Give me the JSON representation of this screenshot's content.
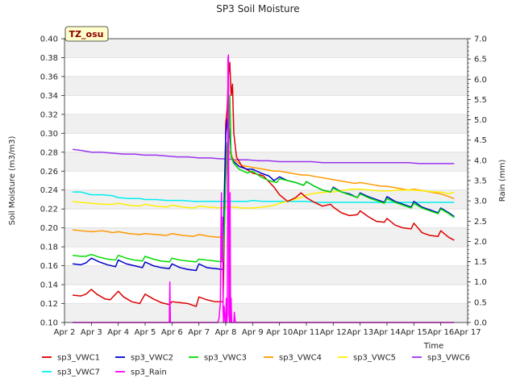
{
  "chart_data": {
    "type": "line",
    "title": "SP3 Soil Moisture",
    "xlabel": "Time",
    "ylabel": "Soil Moisture (m3/m3)",
    "y2label": "Rain (mm)",
    "badge": "TZ_osu",
    "x_ticks": [
      "Apr 2",
      "Apr 3",
      "Apr 4",
      "Apr 5",
      "Apr 6",
      "Apr 7",
      "Apr 8",
      "Apr 9",
      "Apr 10",
      "Apr 11",
      "Apr 12",
      "Apr 13",
      "Apr 14",
      "Apr 15",
      "Apr 16",
      "Apr 17"
    ],
    "xlim": [
      0,
      15
    ],
    "ylim": [
      0.1,
      0.4
    ],
    "y_ticks": [
      "0.10",
      "0.12",
      "0.14",
      "0.16",
      "0.18",
      "0.20",
      "0.22",
      "0.24",
      "0.26",
      "0.28",
      "0.30",
      "0.32",
      "0.34",
      "0.36",
      "0.38",
      "0.40"
    ],
    "y2lim": [
      0.0,
      7.0
    ],
    "y2_ticks": [
      "0.0",
      "0.5",
      "1.0",
      "1.5",
      "2.0",
      "2.5",
      "3.0",
      "3.5",
      "4.0",
      "4.5",
      "5.0",
      "5.5",
      "6.0",
      "6.5",
      "7.0"
    ],
    "grid": "horizontal bands",
    "legend_position": "bottom",
    "series": [
      {
        "name": "sp3_VWC1",
        "color": "#dd0000",
        "axis": "left",
        "x": [
          0.3,
          0.6,
          0.8,
          1.0,
          1.2,
          1.5,
          1.7,
          2.0,
          2.2,
          2.5,
          2.8,
          3.0,
          3.3,
          3.6,
          3.9,
          4.0,
          4.3,
          4.6,
          4.9,
          5.0,
          5.3,
          5.6,
          5.9,
          5.95,
          5.98,
          6.0,
          6.05,
          6.1,
          6.15,
          6.2,
          6.25,
          6.3,
          6.4,
          6.6,
          7.0,
          7.4,
          7.8,
          8.0,
          8.3,
          8.6,
          8.8,
          9.0,
          9.3,
          9.6,
          9.9,
          10.0,
          10.3,
          10.6,
          10.9,
          11.0,
          11.3,
          11.6,
          11.9,
          12.0,
          12.3,
          12.6,
          12.9,
          13.0,
          13.3,
          13.6,
          13.9,
          14.0,
          14.3,
          14.5
        ],
        "y": [
          0.129,
          0.128,
          0.13,
          0.135,
          0.13,
          0.125,
          0.124,
          0.133,
          0.127,
          0.122,
          0.12,
          0.13,
          0.125,
          0.121,
          0.119,
          0.122,
          0.121,
          0.12,
          0.117,
          0.127,
          0.124,
          0.122,
          0.122,
          0.2,
          0.25,
          0.31,
          0.325,
          0.36,
          0.375,
          0.34,
          0.352,
          0.3,
          0.275,
          0.265,
          0.258,
          0.255,
          0.243,
          0.235,
          0.228,
          0.232,
          0.237,
          0.232,
          0.227,
          0.223,
          0.225,
          0.222,
          0.216,
          0.213,
          0.214,
          0.218,
          0.212,
          0.207,
          0.206,
          0.21,
          0.203,
          0.2,
          0.199,
          0.205,
          0.195,
          0.192,
          0.191,
          0.197,
          0.19,
          0.187
        ]
      },
      {
        "name": "sp3_VWC2",
        "color": "#0000cc",
        "axis": "left",
        "x": [
          0.3,
          0.6,
          0.8,
          1.0,
          1.3,
          1.6,
          1.9,
          2.0,
          2.3,
          2.6,
          2.9,
          3.0,
          3.3,
          3.6,
          3.9,
          4.0,
          4.3,
          4.6,
          4.9,
          5.0,
          5.3,
          5.6,
          5.9,
          5.95,
          6.0,
          6.05,
          6.1,
          6.15,
          6.2,
          6.3,
          6.5,
          6.8,
          7.0,
          7.3,
          7.6,
          7.8,
          8.0,
          8.3,
          8.6,
          8.9,
          9.0,
          9.3,
          9.6,
          9.9,
          10.0,
          10.3,
          10.6,
          10.9,
          11.0,
          11.3,
          11.6,
          11.9,
          12.0,
          12.3,
          12.6,
          12.9,
          13.0,
          13.3,
          13.6,
          13.9,
          14.0,
          14.3,
          14.5
        ],
        "y": [
          0.162,
          0.161,
          0.163,
          0.168,
          0.164,
          0.161,
          0.159,
          0.166,
          0.162,
          0.16,
          0.158,
          0.164,
          0.16,
          0.158,
          0.157,
          0.162,
          0.158,
          0.156,
          0.155,
          0.162,
          0.158,
          0.157,
          0.156,
          0.24,
          0.3,
          0.315,
          0.29,
          0.305,
          0.275,
          0.27,
          0.265,
          0.262,
          0.262,
          0.258,
          0.255,
          0.25,
          0.254,
          0.25,
          0.248,
          0.245,
          0.249,
          0.244,
          0.24,
          0.238,
          0.243,
          0.238,
          0.236,
          0.232,
          0.237,
          0.233,
          0.23,
          0.227,
          0.233,
          0.228,
          0.225,
          0.222,
          0.228,
          0.222,
          0.219,
          0.216,
          0.221,
          0.216,
          0.212
        ]
      },
      {
        "name": "sp3_VWC3",
        "color": "#00dd00",
        "axis": "left",
        "x": [
          0.3,
          0.6,
          0.8,
          1.0,
          1.3,
          1.6,
          1.9,
          2.0,
          2.3,
          2.6,
          2.9,
          3.0,
          3.3,
          3.6,
          3.9,
          4.0,
          4.3,
          4.6,
          4.9,
          5.0,
          5.3,
          5.6,
          5.9,
          5.95,
          6.0,
          6.05,
          6.1,
          6.15,
          6.2,
          6.3,
          6.5,
          6.8,
          7.0,
          7.3,
          7.6,
          7.9,
          8.0,
          8.3,
          8.6,
          8.9,
          9.0,
          9.3,
          9.6,
          9.9,
          10.0,
          10.3,
          10.6,
          10.9,
          11.0,
          11.3,
          11.6,
          11.9,
          12.0,
          12.3,
          12.6,
          12.9,
          13.0,
          13.3,
          13.6,
          13.9,
          14.0,
          14.3,
          14.5
        ],
        "y": [
          0.171,
          0.17,
          0.17,
          0.172,
          0.169,
          0.167,
          0.166,
          0.171,
          0.168,
          0.166,
          0.165,
          0.17,
          0.167,
          0.165,
          0.164,
          0.168,
          0.166,
          0.165,
          0.164,
          0.167,
          0.166,
          0.165,
          0.164,
          0.2,
          0.25,
          0.29,
          0.27,
          0.34,
          0.275,
          0.268,
          0.262,
          0.258,
          0.26,
          0.254,
          0.25,
          0.248,
          0.252,
          0.25,
          0.248,
          0.245,
          0.249,
          0.244,
          0.24,
          0.238,
          0.242,
          0.238,
          0.235,
          0.232,
          0.236,
          0.232,
          0.229,
          0.226,
          0.231,
          0.227,
          0.224,
          0.221,
          0.226,
          0.221,
          0.218,
          0.215,
          0.22,
          0.215,
          0.211
        ]
      },
      {
        "name": "sp3_VWC4",
        "color": "#ff9900",
        "axis": "left",
        "x": [
          0.3,
          0.6,
          1.0,
          1.4,
          1.8,
          2.0,
          2.4,
          2.8,
          3.0,
          3.4,
          3.8,
          4.0,
          4.4,
          4.8,
          5.0,
          5.4,
          5.8,
          5.95,
          6.0,
          6.05,
          6.1,
          6.2,
          6.3,
          6.6,
          7.0,
          7.4,
          7.8,
          8.0,
          8.4,
          8.8,
          9.0,
          9.4,
          9.8,
          10.0,
          10.4,
          10.8,
          11.0,
          11.4,
          11.8,
          12.0,
          12.4,
          12.8,
          13.0,
          13.4,
          13.8,
          14.0,
          14.3,
          14.5
        ],
        "y": [
          0.198,
          0.197,
          0.196,
          0.197,
          0.195,
          0.196,
          0.194,
          0.193,
          0.194,
          0.193,
          0.192,
          0.194,
          0.192,
          0.191,
          0.193,
          0.191,
          0.19,
          0.21,
          0.25,
          0.275,
          0.282,
          0.278,
          0.272,
          0.266,
          0.264,
          0.262,
          0.26,
          0.26,
          0.258,
          0.256,
          0.256,
          0.254,
          0.252,
          0.251,
          0.249,
          0.247,
          0.248,
          0.246,
          0.244,
          0.244,
          0.242,
          0.24,
          0.241,
          0.239,
          0.237,
          0.236,
          0.233,
          0.231
        ]
      },
      {
        "name": "sp3_VWC5",
        "color": "#ffee00",
        "axis": "left",
        "x": [
          0.3,
          0.6,
          1.0,
          1.4,
          1.8,
          2.0,
          2.4,
          2.8,
          3.0,
          3.4,
          3.8,
          4.0,
          4.4,
          4.8,
          5.0,
          5.4,
          5.8,
          6.0,
          6.3,
          6.6,
          7.0,
          7.4,
          7.8,
          8.0,
          8.4,
          8.8,
          9.0,
          9.4,
          9.8,
          10.0,
          10.4,
          10.8,
          11.0,
          11.4,
          11.8,
          12.0,
          12.4,
          12.8,
          13.0,
          13.4,
          13.8,
          14.0,
          14.3,
          14.5
        ],
        "y": [
          0.228,
          0.227,
          0.226,
          0.225,
          0.225,
          0.226,
          0.224,
          0.223,
          0.225,
          0.223,
          0.222,
          0.224,
          0.222,
          0.221,
          0.223,
          0.222,
          0.221,
          0.222,
          0.222,
          0.221,
          0.221,
          0.222,
          0.224,
          0.226,
          0.229,
          0.232,
          0.235,
          0.237,
          0.238,
          0.238,
          0.24,
          0.241,
          0.241,
          0.24,
          0.239,
          0.239,
          0.24,
          0.24,
          0.24,
          0.239,
          0.238,
          0.238,
          0.236,
          0.238
        ]
      },
      {
        "name": "sp3_VWC6",
        "color": "#9933ee",
        "axis": "left",
        "x": [
          0.3,
          0.6,
          1.0,
          1.4,
          1.8,
          2.2,
          2.6,
          3.0,
          3.4,
          3.8,
          4.2,
          4.6,
          5.0,
          5.4,
          5.8,
          6.0,
          6.4,
          6.8,
          7.2,
          7.6,
          8.0,
          8.4,
          8.8,
          9.2,
          9.6,
          10.0,
          10.4,
          10.8,
          11.2,
          11.6,
          12.0,
          12.4,
          12.8,
          13.2,
          13.6,
          14.0,
          14.3,
          14.5
        ],
        "y": [
          0.283,
          0.282,
          0.28,
          0.28,
          0.279,
          0.278,
          0.278,
          0.277,
          0.277,
          0.276,
          0.275,
          0.275,
          0.274,
          0.274,
          0.273,
          0.273,
          0.272,
          0.272,
          0.271,
          0.271,
          0.27,
          0.27,
          0.27,
          0.27,
          0.269,
          0.269,
          0.269,
          0.269,
          0.269,
          0.269,
          0.269,
          0.269,
          0.269,
          0.268,
          0.268,
          0.268,
          0.268,
          0.268
        ]
      },
      {
        "name": "sp3_VWC7",
        "color": "#00eeee",
        "axis": "left",
        "x": [
          0.3,
          0.6,
          1.0,
          1.4,
          1.8,
          2.0,
          2.4,
          2.8,
          3.0,
          3.4,
          3.8,
          4.0,
          4.4,
          4.8,
          5.0,
          5.4,
          5.8,
          6.0,
          6.4,
          6.8,
          7.0,
          7.4,
          7.8,
          8.0,
          8.4,
          8.8,
          9.0,
          9.4,
          9.8,
          10.0,
          10.4,
          10.8,
          11.0,
          11.4,
          11.8,
          12.0,
          12.4,
          12.8,
          13.0,
          13.4,
          13.8,
          14.0,
          14.3,
          14.5
        ],
        "y": [
          0.238,
          0.238,
          0.235,
          0.235,
          0.234,
          0.232,
          0.231,
          0.231,
          0.23,
          0.23,
          0.229,
          0.229,
          0.229,
          0.228,
          0.228,
          0.228,
          0.228,
          0.228,
          0.228,
          0.228,
          0.229,
          0.228,
          0.228,
          0.228,
          0.228,
          0.228,
          0.228,
          0.227,
          0.227,
          0.227,
          0.227,
          0.227,
          0.227,
          0.227,
          0.227,
          0.227,
          0.227,
          0.227,
          0.227,
          0.227,
          0.227,
          0.227,
          0.227,
          0.227
        ]
      },
      {
        "name": "sp3_Rain",
        "color": "#ff00ff",
        "axis": "right",
        "x": [
          0.3,
          3.9,
          3.92,
          3.94,
          3.96,
          5.7,
          5.75,
          5.8,
          5.82,
          5.84,
          5.86,
          5.88,
          5.9,
          5.92,
          5.94,
          5.96,
          5.98,
          6.0,
          6.02,
          6.04,
          6.06,
          6.08,
          6.1,
          6.12,
          6.14,
          6.16,
          6.18,
          6.2,
          6.22,
          6.24,
          6.26,
          6.3,
          6.32,
          6.34,
          6.36,
          6.5,
          14.5
        ],
        "y": [
          0,
          0,
          1.0,
          0,
          0,
          0,
          0.1,
          0.5,
          2.2,
          3.2,
          1.5,
          2.6,
          0.3,
          0,
          0.4,
          0.2,
          0,
          0,
          0.6,
          0,
          0.2,
          6.5,
          6.6,
          0.2,
          0,
          3.2,
          0,
          0.6,
          0,
          0,
          0,
          0,
          0.25,
          0.1,
          0,
          0,
          0
        ]
      }
    ]
  }
}
